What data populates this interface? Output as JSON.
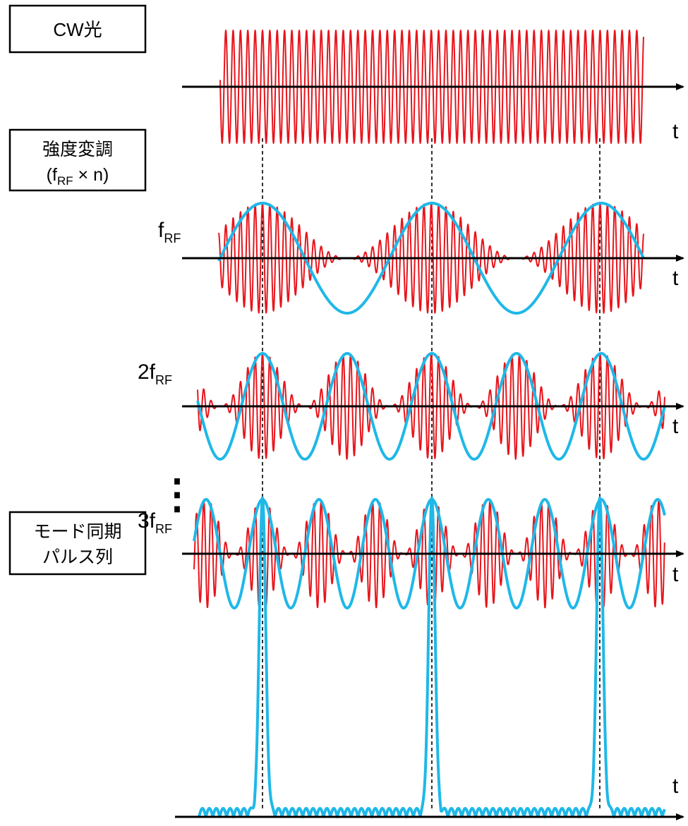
{
  "labels": {
    "cw_light": "CW光",
    "modulation_line1": "強度変調",
    "modulation_line2_open": "(f",
    "modulation_line2_sub": "RF",
    "modulation_line2_rest": " × n)",
    "mode_lock_line1": "モード同期",
    "mode_lock_line2": "パルス列",
    "time_axis": "t",
    "freq_1_main": "f",
    "freq_1_sub": "RF",
    "freq_2_main": "2f",
    "freq_2_sub": "RF",
    "freq_3_main": "3f",
    "freq_3_sub": "RF",
    "continuation": "⋮"
  },
  "colors": {
    "carrier": "#e8141b",
    "envelope": "#1fb8e8",
    "axis": "#000000",
    "guide": "#000000"
  }
}
